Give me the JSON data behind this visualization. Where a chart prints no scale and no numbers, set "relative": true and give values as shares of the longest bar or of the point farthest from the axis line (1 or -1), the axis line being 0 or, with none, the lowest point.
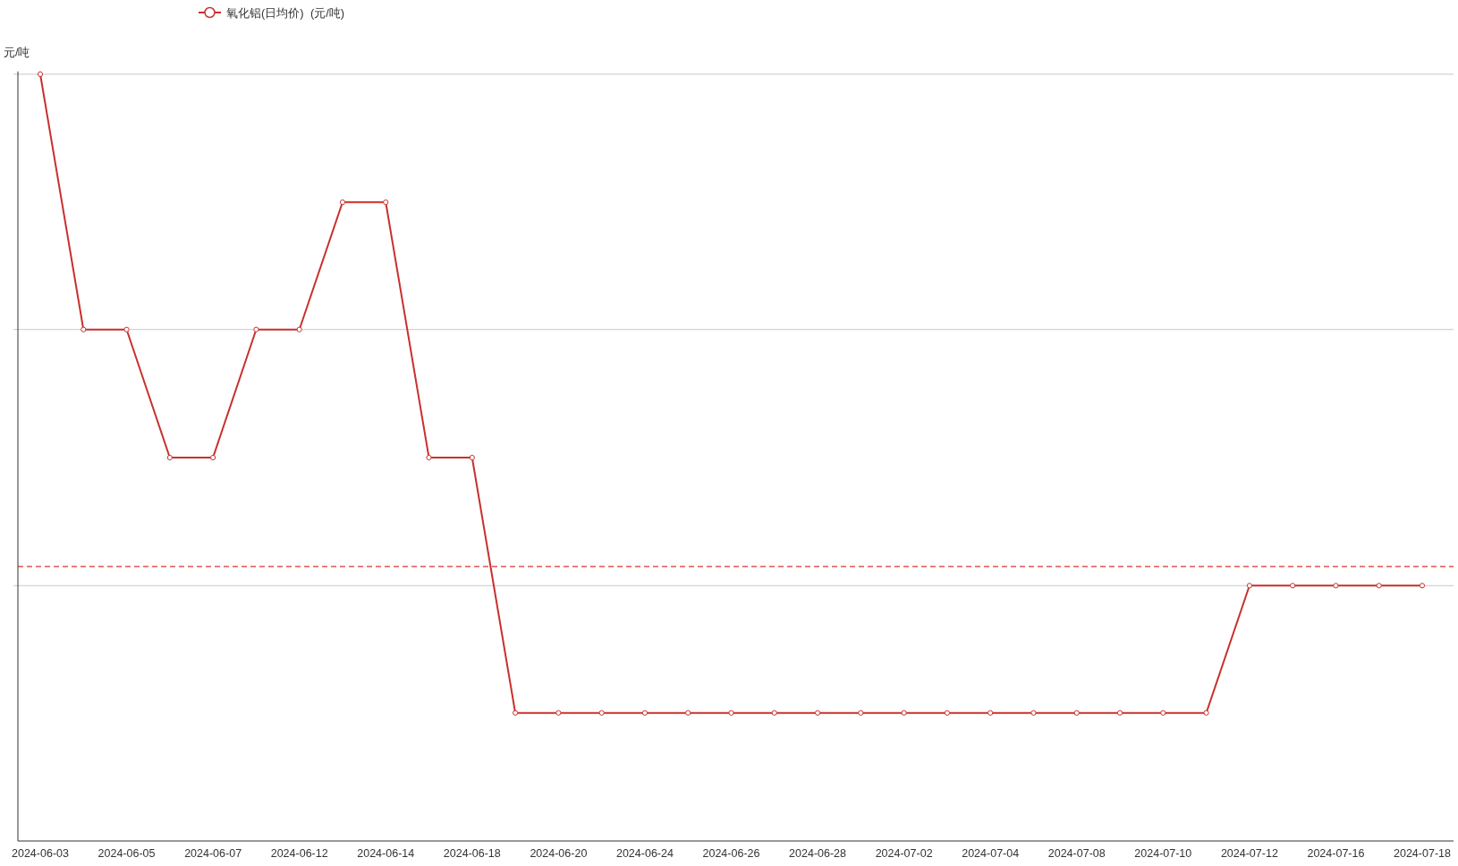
{
  "chart_data": {
    "type": "line",
    "relative": true,
    "ylabel": "元/吨",
    "categories": [
      "2024-06-03",
      null,
      "2024-06-05",
      null,
      "2024-06-07",
      null,
      "2024-06-12",
      null,
      "2024-06-14",
      null,
      "2024-06-18",
      null,
      "2024-06-20",
      null,
      "2024-06-24",
      null,
      "2024-06-26",
      null,
      "2024-06-28",
      null,
      "2024-07-02",
      null,
      "2024-07-04",
      null,
      "2024-07-08",
      null,
      "2024-07-10",
      null,
      "2024-07-12",
      null,
      "2024-07-16",
      null,
      "2024-07-18"
    ],
    "series": [
      {
        "name": "氧化铝(日均价)  (元/吨)",
        "color": "#c9302c",
        "values": [
          1,
          0.667,
          0.667,
          0.5,
          0.5,
          0.667,
          0.667,
          0.833,
          0.833,
          0.5,
          0.5,
          0.167,
          0.167,
          0.167,
          0.167,
          0.167,
          0.167,
          0.167,
          0.167,
          0.167,
          0.167,
          0.167,
          0.167,
          0.167,
          0.167,
          0.167,
          0.167,
          0.167,
          0.333,
          0.333,
          0.333,
          0.333,
          0.333
        ]
      }
    ],
    "legend": "top left",
    "marker": "circle",
    "line_style": "solid",
    "ref_lines": [
      {
        "axis": "y",
        "value": 0.333,
        "color": "#c8c8c8",
        "line_style": "solid"
      },
      {
        "axis": "y",
        "value": 0.667,
        "color": "#c8c8c8",
        "line_style": "solid"
      },
      {
        "axis": "y",
        "value": 1,
        "color": "#c8c8c8",
        "line_style": "solid"
      },
      {
        "axis": "y",
        "value": 0.358,
        "color": "#e03030",
        "line_style": "dashed"
      }
    ]
  }
}
